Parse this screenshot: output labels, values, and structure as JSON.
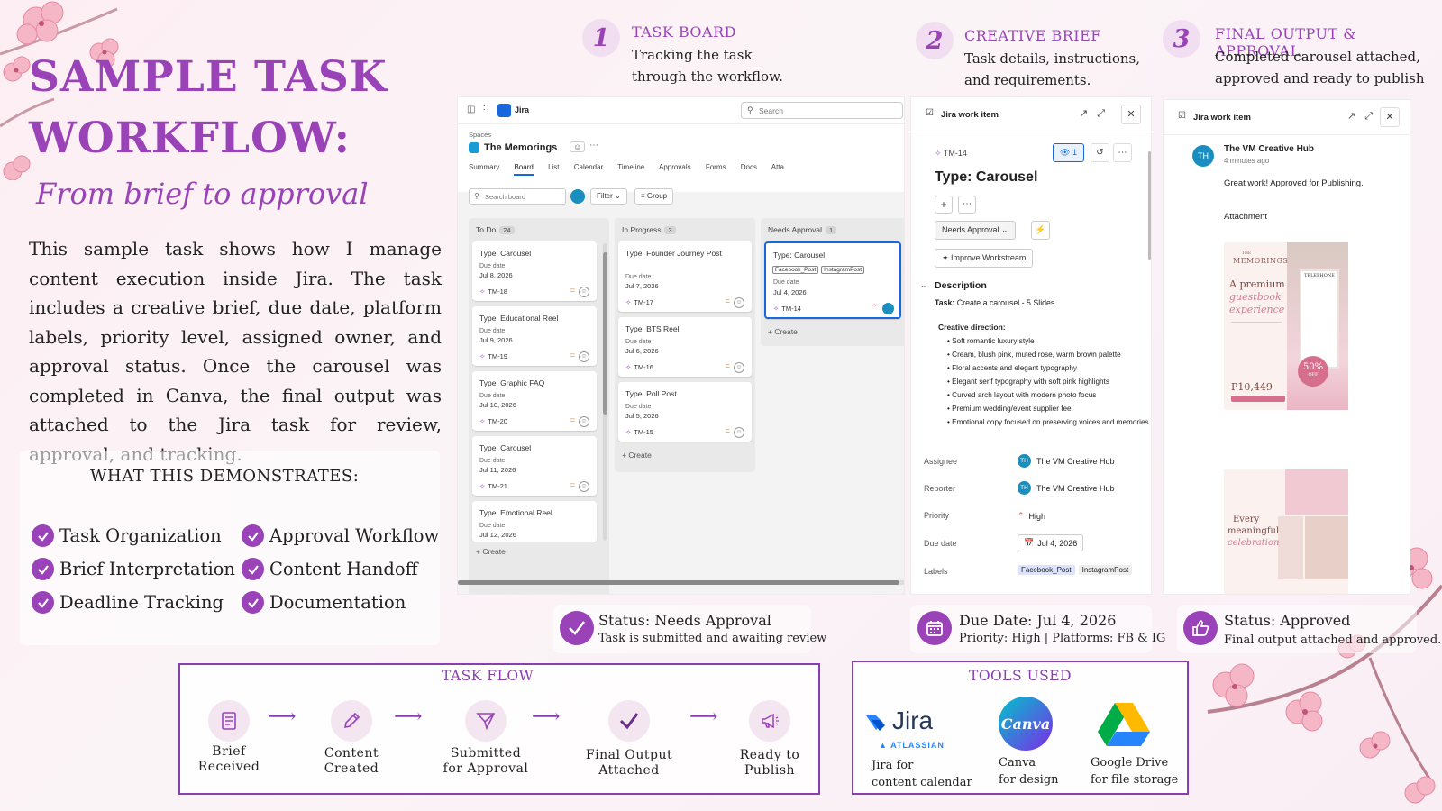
{
  "page": {
    "title": "SAMPLE TASK WORKFLOW:",
    "subtitle": "From brief to approval",
    "intro": "This sample task shows how I manage content execution inside Jira. The task includes a creative brief, due date, platform labels, priority level, assigned owner, and approval status. Once the carousel was completed in Canva, the final output was attached to the Jira task for review, approval, and tracking."
  },
  "demonstrates": {
    "title": "WHAT THIS DEMONSTRATES:",
    "items": [
      "Task Organization",
      "Approval Workflow",
      "Brief Interpretation",
      "Content Handoff",
      "Deadline Tracking",
      "Documentation"
    ]
  },
  "steps": [
    {
      "num": "1",
      "title": "TASK BOARD",
      "desc1": "Tracking the task",
      "desc2": "through the workflow."
    },
    {
      "num": "2",
      "title": "CREATIVE BRIEF",
      "desc1": "Task details, instructions,",
      "desc2": "and requirements."
    },
    {
      "num": "3",
      "title": "FINAL OUTPUT & APPROVAL",
      "desc1": "Completed carousel attached,",
      "desc2": "approved and ready to publish"
    }
  ],
  "board": {
    "app": "Jira",
    "search_placeholder": "Search",
    "spaces": "Spaces",
    "project": "The Memorings",
    "tabs": [
      "Summary",
      "Board",
      "List",
      "Calendar",
      "Timeline",
      "Approvals",
      "Forms",
      "Docs",
      "Atta"
    ],
    "search_board": "Search board",
    "filter": "Filter",
    "group": "Group",
    "due_label": "Due date",
    "create": "Create",
    "columns": [
      {
        "name": "To Do",
        "count": "24",
        "cards": [
          {
            "title": "Type: Carousel",
            "due": "Jul 8, 2026",
            "id": "TM-18"
          },
          {
            "title": "Type: Educational Reel",
            "due": "Jul 9, 2026",
            "id": "TM-19"
          },
          {
            "title": "Type: Graphic FAQ",
            "due": "Jul 10, 2026",
            "id": "TM-20"
          },
          {
            "title": "Type: Carousel",
            "due": "Jul 11, 2026",
            "id": "TM-21"
          },
          {
            "title": "Type: Emotional Reel",
            "due": "Jul 12, 2026",
            "id": ""
          }
        ]
      },
      {
        "name": "In Progress",
        "count": "3",
        "cards": [
          {
            "title": "Type: Founder Journey Post",
            "due": "Jul 7, 2026",
            "id": "TM-17"
          },
          {
            "title": "Type: BTS Reel",
            "due": "Jul 6, 2026",
            "id": "TM-16"
          },
          {
            "title": "Type: Poll Post",
            "due": "Jul 5, 2026",
            "id": "TM-15"
          }
        ]
      },
      {
        "name": "Needs Approval",
        "count": "1",
        "cards": [
          {
            "title": "Type: Carousel",
            "tags": [
              "Facebook_Post",
              "InstagramPost"
            ],
            "due": "Jul 4, 2026",
            "id": "TM-14"
          }
        ]
      }
    ]
  },
  "brief": {
    "header": "Jira work item",
    "id": "TM-14",
    "watchers": "1",
    "title": "Type: Carousel",
    "status": "Needs Approval",
    "improve": "Improve Workstream",
    "desc_label": "Description",
    "task_label": "Task:",
    "task": "Create a carousel - 5 Slides",
    "creative_label": "Creative direction:",
    "bullets": [
      "Soft romantic luxury style",
      "Cream, blush pink, muted rose, warm brown palette",
      "Floral accents and elegant typography",
      "Elegant serif typography with soft pink highlights",
      "Curved arch layout with modern photo focus",
      "Premium wedding/event supplier feel",
      "Emotional copy focused on preserving voices and memories"
    ],
    "fields": {
      "assignee_l": "Assignee",
      "assignee": "The VM Creative Hub",
      "reporter_l": "Reporter",
      "reporter": "The VM Creative Hub",
      "priority_l": "Priority",
      "priority": "High",
      "due_l": "Due date",
      "due": "Jul 4, 2026",
      "labels_l": "Labels",
      "labels": [
        "Facebook_Post",
        "InstagramPost"
      ]
    },
    "avatar": "TH"
  },
  "approval": {
    "header": "Jira work item",
    "user": "The VM Creative Hub",
    "avatar": "TH",
    "time": "4 minutes ago",
    "comment": "Great work! Approved for Publishing.",
    "attachment": "Attachment",
    "slide1": {
      "brand": "MEMORINGS",
      "the": "THE",
      "head1": "A premium",
      "head2": "guestbook",
      "head3": "experience",
      "badge1": "50%",
      "badge2": "OFF",
      "price": "P10,449",
      "phone": "TELEPHONE"
    },
    "slide2": {
      "head1": "Every",
      "head2": "meaningful",
      "head3": "celebration"
    }
  },
  "statuses": [
    {
      "title": "Status: Needs Approval",
      "sub": "Task is submitted and awaiting review"
    },
    {
      "title": "Due Date: Jul 4, 2026",
      "sub": "Priority: High | Platforms: FB & IG"
    },
    {
      "title": "Status: Approved",
      "sub": "Final output attached and approved."
    }
  ],
  "flow": {
    "title": "TASK FLOW",
    "steps": [
      {
        "l1": "Brief",
        "l2": "Received"
      },
      {
        "l1": "Content",
        "l2": "Created"
      },
      {
        "l1": "Submitted",
        "l2": "for Approval"
      },
      {
        "l1": "Final Output",
        "l2": "Attached"
      },
      {
        "l1": "Ready to",
        "l2": "Publish"
      }
    ]
  },
  "tools": {
    "title": "TOOLS USED",
    "jira": {
      "logo": "Jira",
      "sub": "ATLASSIAN",
      "l1": "Jira for",
      "l2": "content calendar"
    },
    "canva": {
      "logo": "Canva",
      "l1": "Canva",
      "l2": "for design"
    },
    "drive": {
      "l1": "Google Drive",
      "l2": "for file storage"
    }
  },
  "colors": {
    "accent": "#9a43b8",
    "jira_blue": "#1868db",
    "canva": "#00c4cc"
  }
}
